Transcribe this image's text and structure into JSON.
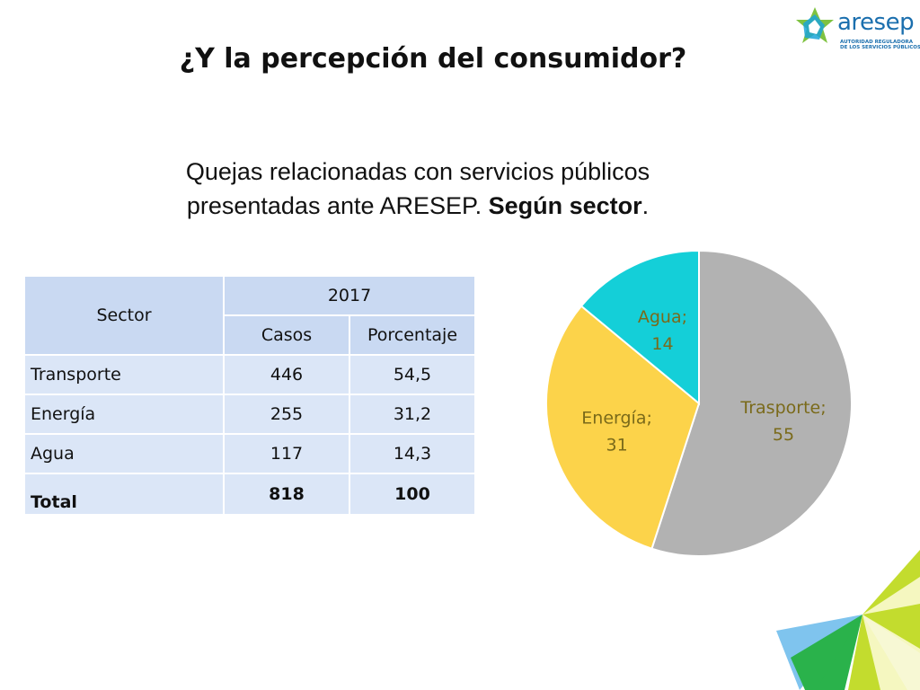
{
  "logo": {
    "name": "aresep",
    "subtitle": "AUTORIDAD REGULADORA DE LOS SERVICIOS PÚBLICOS"
  },
  "slide": {
    "title": "¿Y la percepción del consumidor?",
    "subtitle_line1": "Quejas relacionadas con servicios públicos",
    "subtitle_line2_normal": "presentadas ante ARESEP. ",
    "subtitle_line2_bold": "Según sector",
    "subtitle_line2_end": "."
  },
  "table": {
    "header_sector": "Sector",
    "header_year": "2017",
    "header_casos": "Casos",
    "header_porcentaje": "Porcentaje",
    "rows": [
      {
        "sector": "Transporte",
        "casos": "446",
        "porcentaje": "54,5"
      },
      {
        "sector": "Energía",
        "casos": "255",
        "porcentaje": "31,2"
      },
      {
        "sector": "Agua",
        "casos": "117",
        "porcentaje": "14,3"
      }
    ],
    "total": {
      "sector": "Total",
      "casos": "818",
      "porcentaje": "100"
    }
  },
  "chart_data": {
    "type": "pie",
    "slices": [
      {
        "label": "Trasporte;",
        "value": 55,
        "color": "#b2b2b2",
        "text_color": "#7a6a1a"
      },
      {
        "label": "Energía;",
        "value": 31,
        "color": "#fcd34a",
        "text_color": "#7a6a1a"
      },
      {
        "label": "Agua;",
        "value": 14,
        "color": "#14cfd8",
        "text_color": "#7a6a1a"
      }
    ]
  },
  "colors": {
    "table_header": "#c9d9f2",
    "table_cell": "#dbe6f7",
    "logo_blue": "#1b6fae",
    "logo_green": "#7fc241"
  }
}
